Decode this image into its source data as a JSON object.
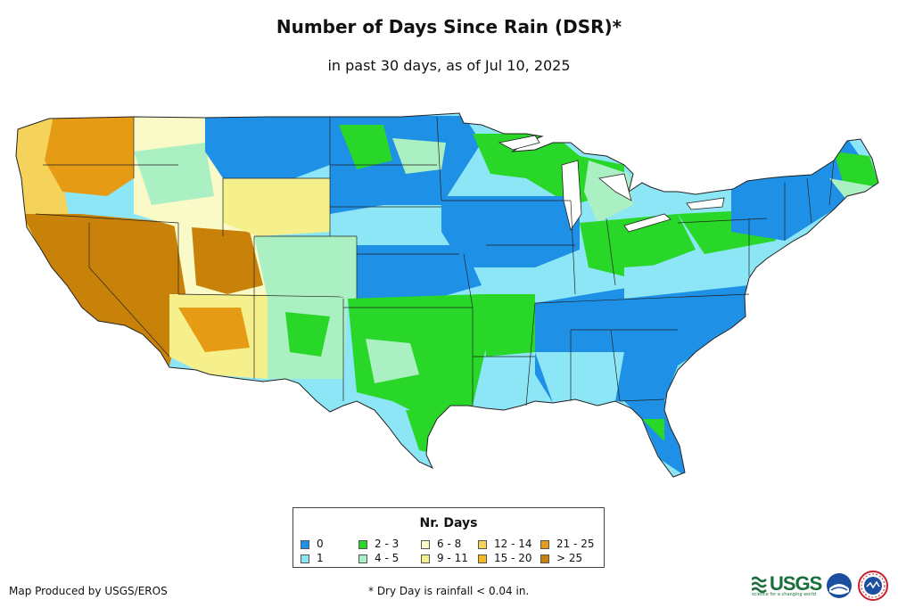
{
  "title": "Number of Days Since Rain (DSR)*",
  "subtitle": "in past 30 days, as of Jul 10, 2025",
  "legend": {
    "title": "Nr. Days",
    "items": [
      {
        "label": "0",
        "color": "#1E90E6"
      },
      {
        "label": "1",
        "color": "#8CE6F5"
      },
      {
        "label": "2 - 3",
        "color": "#28D728"
      },
      {
        "label": "4 - 5",
        "color": "#AAF0C3"
      },
      {
        "label": "6 - 8",
        "color": "#FAFAC8"
      },
      {
        "label": "9 - 11",
        "color": "#F5F08C"
      },
      {
        "label": "12 - 14",
        "color": "#F5D25A"
      },
      {
        "label": "15 - 20",
        "color": "#F5B91E"
      },
      {
        "label": "21 - 25",
        "color": "#E69B14"
      },
      {
        "label": "> 25",
        "color": "#C8820A"
      }
    ]
  },
  "credit": "Map Produced by USGS/EROS",
  "footnote": "* Dry Day is rainfall < 0.04 in.",
  "logos": {
    "usgs": "USGS",
    "usgs_tagline": "science for a changing world",
    "noaa": "noaa-logo",
    "nws": "nws-logo"
  }
}
